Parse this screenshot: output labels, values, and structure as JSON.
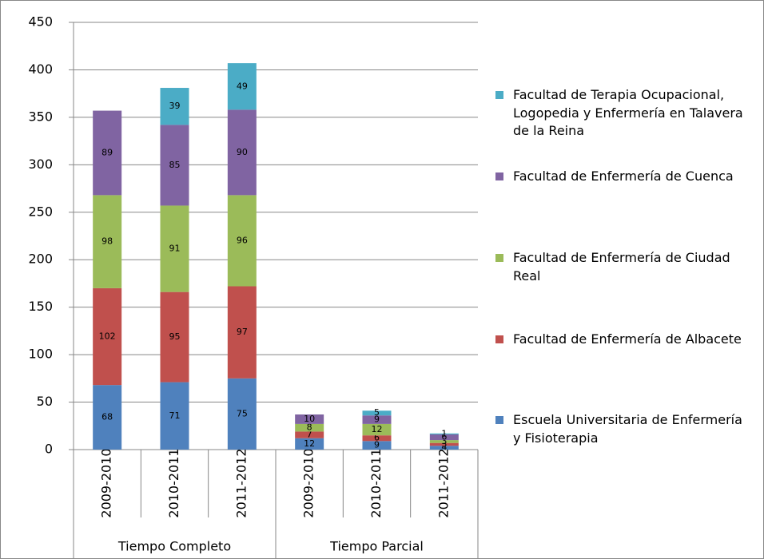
{
  "chart_data": {
    "type": "stacked_bar",
    "categories": [
      "2009-2010",
      "2010-2011",
      "2011-2012",
      "2009-2010",
      "2010-2011",
      "2011-2012"
    ],
    "groups": [
      {
        "name": "Tiempo Completo",
        "size": 3
      },
      {
        "name": "Tiempo Parcial",
        "size": 3
      }
    ],
    "series": [
      {
        "name": "Escuela Universitaria de Enfermería y Fisioterapia",
        "color": "#4f81bd",
        "values": [
          68,
          71,
          75,
          12,
          9,
          4
        ]
      },
      {
        "name": "Facultad de Enfermería de Albacete",
        "color": "#c0504d",
        "values": [
          102,
          95,
          97,
          7,
          6,
          3
        ]
      },
      {
        "name": "Facultad de Enfermería de Ciudad Real",
        "color": "#9bbb59",
        "values": [
          98,
          91,
          96,
          8,
          12,
          3
        ]
      },
      {
        "name": "Facultad de Enfermería de Cuenca",
        "color": "#8064a2",
        "values": [
          89,
          85,
          90,
          10,
          9,
          6
        ]
      },
      {
        "name": "Facultad de Terapia Ocupacional, Logopedia y Enfermería en Talavera de la Reina",
        "color": "#4bacc6",
        "values": [
          null,
          39,
          49,
          null,
          5,
          1
        ]
      }
    ],
    "ylim": [
      0,
      450
    ],
    "yticks": [
      0,
      50,
      100,
      150,
      200,
      250,
      300,
      350,
      400,
      450
    ],
    "grid": true
  }
}
